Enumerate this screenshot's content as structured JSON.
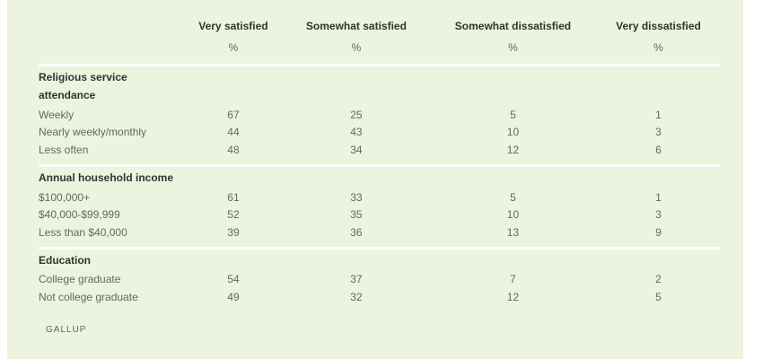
{
  "columns": [
    "Very satisfied",
    "Somewhat satisfied",
    "Somewhat dissatisfied",
    "Very dissatisfied"
  ],
  "unit": "%",
  "groups": [
    {
      "title": "Religious service attendance",
      "rows": [
        {
          "label": "Weekly",
          "values": [
            "67",
            "25",
            "5",
            "1"
          ]
        },
        {
          "label": "Nearly weekly/monthly",
          "values": [
            "44",
            "43",
            "10",
            "3"
          ]
        },
        {
          "label": "Less often",
          "values": [
            "48",
            "34",
            "12",
            "6"
          ]
        }
      ]
    },
    {
      "title": "Annual household income",
      "rows": [
        {
          "label": "$100,000+",
          "values": [
            "61",
            "33",
            "5",
            "1"
          ]
        },
        {
          "label": "$40,000-$99,999",
          "values": [
            "52",
            "35",
            "10",
            "3"
          ]
        },
        {
          "label": "Less than $40,000",
          "values": [
            "39",
            "36",
            "13",
            "9"
          ]
        }
      ]
    },
    {
      "title": "Education",
      "rows": [
        {
          "label": "College graduate",
          "values": [
            "54",
            "37",
            "7",
            "2"
          ]
        },
        {
          "label": "Not college graduate",
          "values": [
            "49",
            "32",
            "12",
            "5"
          ]
        }
      ]
    }
  ],
  "source": "GALLUP"
}
